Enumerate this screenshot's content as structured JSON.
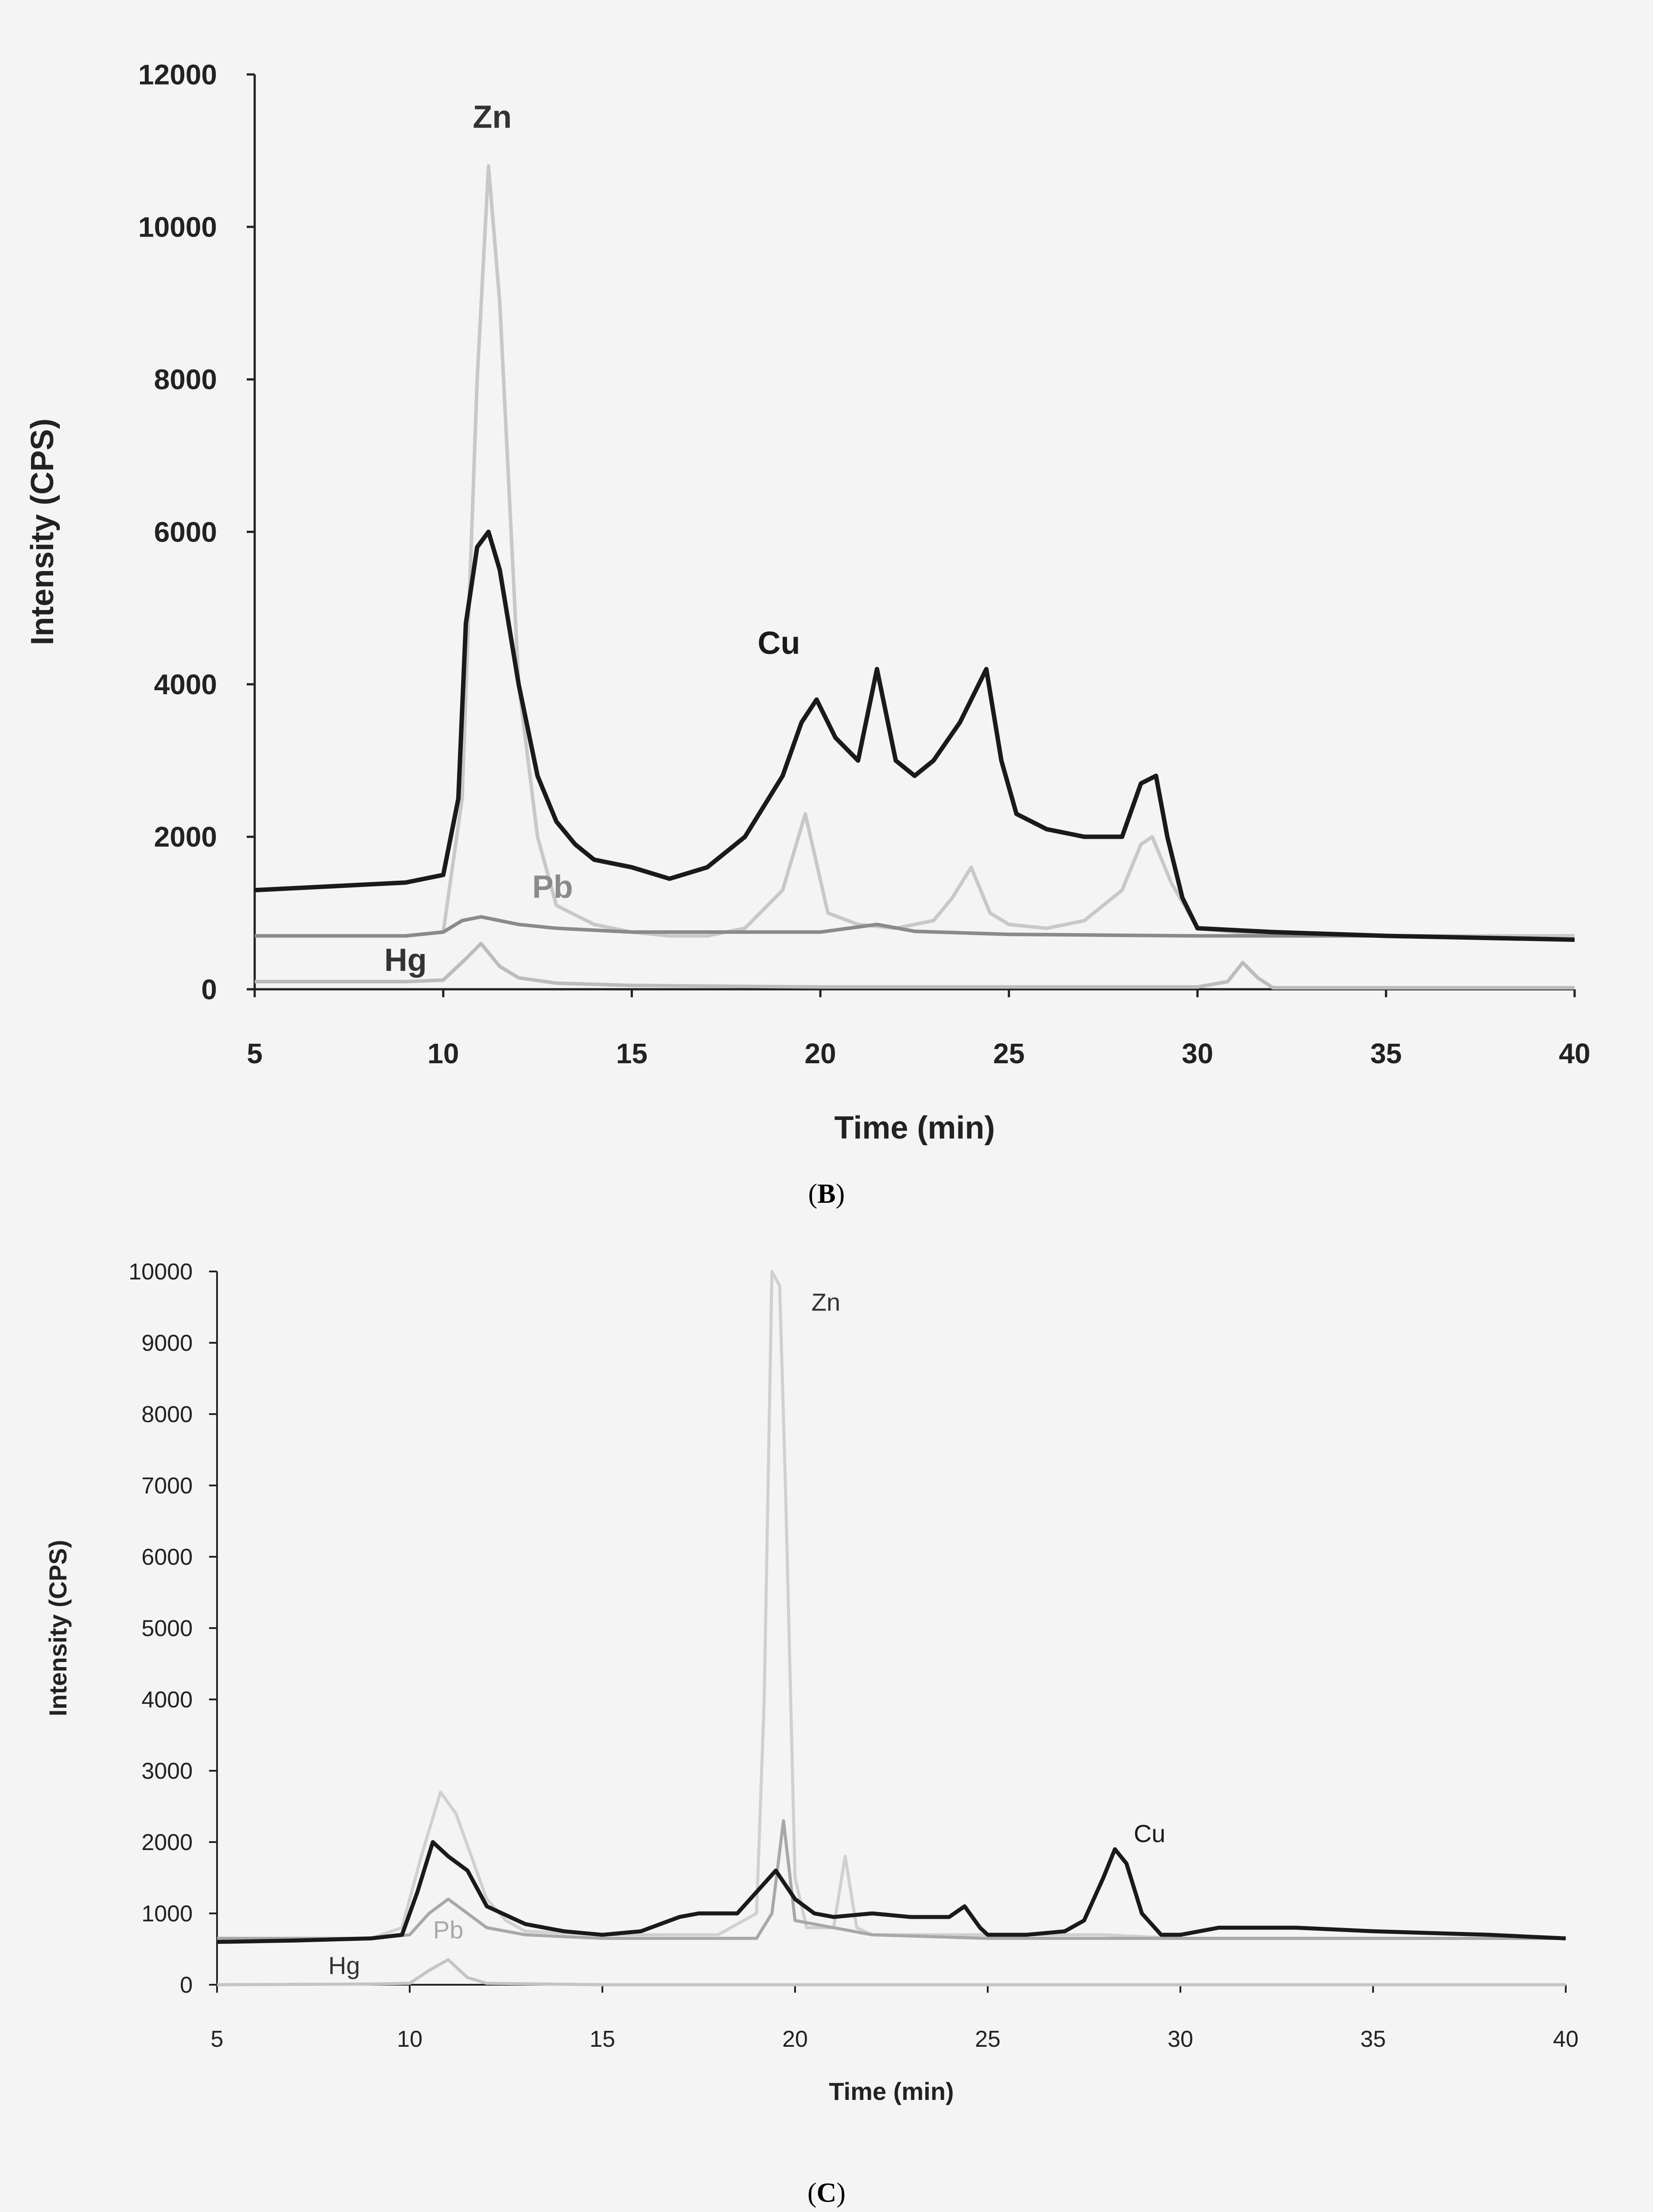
{
  "captions": {
    "b": "B",
    "c": "C"
  },
  "chart_data": [
    {
      "type": "line",
      "panel": "B",
      "xlabel": "Time (min)",
      "ylabel": "Intensity (CPS)",
      "xlim": [
        5,
        40
      ],
      "ylim": [
        0,
        12000
      ],
      "xticks": [
        5,
        10,
        15,
        20,
        25,
        30,
        35,
        40
      ],
      "yticks": [
        0,
        2000,
        4000,
        6000,
        8000,
        10000,
        12000
      ],
      "grid": false,
      "legend": "none",
      "series": [
        {
          "name": "Zn",
          "color": "#c8c8c8",
          "x": [
            5,
            9,
            10,
            10.5,
            10.9,
            11.2,
            11.5,
            12,
            12.5,
            13,
            14,
            15,
            16,
            17,
            18,
            19,
            19.6,
            20.2,
            21,
            22,
            23,
            23.5,
            24,
            24.5,
            25,
            26,
            27,
            28,
            28.5,
            28.8,
            29.3,
            30,
            31,
            32,
            35,
            40
          ],
          "y": [
            700,
            700,
            750,
            2500,
            8000,
            10800,
            9000,
            4000,
            2000,
            1100,
            850,
            750,
            700,
            700,
            800,
            1300,
            2300,
            1000,
            850,
            800,
            900,
            1200,
            1600,
            1000,
            850,
            800,
            900,
            1300,
            1900,
            2000,
            1400,
            800,
            750,
            700,
            700,
            700
          ]
        },
        {
          "name": "Cu",
          "color": "#1a1a1a",
          "x": [
            5,
            7,
            9,
            10,
            10.4,
            10.6,
            10.9,
            11.2,
            11.5,
            12,
            12.5,
            13,
            13.5,
            14,
            15,
            16,
            17,
            18,
            19,
            19.5,
            19.9,
            20.4,
            21,
            21.5,
            22,
            22.5,
            23,
            23.7,
            24.4,
            24.8,
            25.2,
            26,
            27,
            28,
            28.5,
            28.9,
            29.2,
            29.6,
            30,
            32,
            35,
            40
          ],
          "y": [
            1300,
            1350,
            1400,
            1500,
            2500,
            4800,
            5800,
            6000,
            5500,
            4000,
            2800,
            2200,
            1900,
            1700,
            1600,
            1450,
            1600,
            2000,
            2800,
            3500,
            3800,
            3300,
            3000,
            4200,
            3000,
            2800,
            3000,
            3500,
            4200,
            3000,
            2300,
            2100,
            2000,
            2000,
            2700,
            2800,
            2000,
            1200,
            800,
            750,
            700,
            650
          ]
        },
        {
          "name": "Pb",
          "color": "#8a8a8a",
          "x": [
            5,
            9,
            10,
            10.5,
            11,
            12,
            13,
            15,
            20,
            21.5,
            22.5,
            25,
            30,
            35,
            40
          ],
          "y": [
            700,
            700,
            750,
            900,
            950,
            850,
            800,
            750,
            750,
            850,
            760,
            720,
            700,
            700,
            650
          ]
        },
        {
          "name": "Hg",
          "color": "#bcbcbc",
          "x": [
            5,
            9,
            10,
            10.6,
            11,
            11.5,
            12,
            13,
            15,
            20,
            30,
            30.8,
            31.2,
            31.6,
            32,
            35,
            40
          ],
          "y": [
            100,
            100,
            120,
            400,
            600,
            300,
            150,
            80,
            50,
            30,
            30,
            100,
            350,
            150,
            20,
            20,
            20
          ]
        }
      ],
      "annotations": [
        {
          "text": "Zn",
          "x": 11.3,
          "y": 11300
        },
        {
          "text": "Cu",
          "x": 18.9,
          "y": 4400
        },
        {
          "text": "Pb",
          "x": 12.9,
          "y": 1200
        },
        {
          "text": "Hg",
          "x": 9,
          "y": 240
        }
      ]
    },
    {
      "type": "line",
      "panel": "C",
      "xlabel": "Time (min)",
      "ylabel": "Intensity (CPS)",
      "xlim": [
        5,
        40
      ],
      "ylim": [
        0,
        10000
      ],
      "xticks": [
        5,
        10,
        15,
        20,
        25,
        30,
        35,
        40
      ],
      "yticks": [
        0,
        1000,
        2000,
        3000,
        4000,
        5000,
        6000,
        7000,
        8000,
        9000,
        10000
      ],
      "grid": false,
      "legend": "none",
      "series": [
        {
          "name": "Zn",
          "color": "#d0d0d0",
          "x": [
            5,
            9,
            9.8,
            10.3,
            10.8,
            11.2,
            11.6,
            12,
            12.5,
            13,
            15,
            18,
            19,
            19.2,
            19.4,
            19.6,
            19.75,
            20,
            20.3,
            21,
            21.3,
            21.6,
            22,
            25,
            28,
            30,
            35,
            40
          ],
          "y": [
            650,
            650,
            800,
            1800,
            2700,
            2400,
            1800,
            1200,
            900,
            750,
            700,
            700,
            1000,
            4000,
            10000,
            9800,
            7000,
            1500,
            800,
            800,
            1800,
            800,
            700,
            700,
            700,
            650,
            650,
            650
          ]
        },
        {
          "name": "Cu",
          "color": "#1a1a1a",
          "x": [
            5,
            7,
            9,
            9.8,
            10.2,
            10.6,
            11,
            11.5,
            12,
            13,
            14,
            15,
            16,
            17,
            17.5,
            18.5,
            19,
            19.5,
            20,
            20.5,
            21,
            22,
            23,
            24,
            24.4,
            24.8,
            25,
            26,
            27,
            27.5,
            28,
            28.3,
            28.6,
            29,
            29.5,
            30,
            31,
            33,
            35,
            38,
            40
          ],
          "y": [
            600,
            620,
            650,
            700,
            1300,
            2000,
            1800,
            1600,
            1100,
            850,
            750,
            700,
            750,
            950,
            1000,
            1000,
            1300,
            1600,
            1200,
            1000,
            950,
            1000,
            950,
            950,
            1100,
            800,
            700,
            700,
            750,
            900,
            1500,
            1900,
            1700,
            1000,
            700,
            700,
            800,
            800,
            750,
            700,
            650
          ]
        },
        {
          "name": "Pb",
          "color": "#a8a8a8",
          "x": [
            5,
            9,
            10,
            10.5,
            11,
            11.5,
            12,
            13,
            15,
            19,
            19.4,
            19.7,
            20,
            22,
            25,
            30,
            35,
            40
          ],
          "y": [
            650,
            650,
            700,
            1000,
            1200,
            1000,
            800,
            700,
            650,
            650,
            1000,
            2300,
            900,
            700,
            650,
            650,
            650,
            650
          ]
        },
        {
          "name": "Hg",
          "color": "#c4c4c4",
          "x": [
            5,
            9,
            10,
            10.5,
            11,
            11.5,
            12,
            15,
            20,
            30,
            40
          ],
          "y": [
            0,
            10,
            20,
            200,
            350,
            100,
            20,
            0,
            0,
            0,
            0
          ]
        }
      ],
      "annotations": [
        {
          "text": "Zn",
          "x": 20.8,
          "y": 9450
        },
        {
          "text": "Cu",
          "x": 29.2,
          "y": 2000
        },
        {
          "text": "Pb",
          "x": 11,
          "y": 650
        },
        {
          "text": "Hg",
          "x": 8.3,
          "y": 150
        }
      ]
    }
  ]
}
